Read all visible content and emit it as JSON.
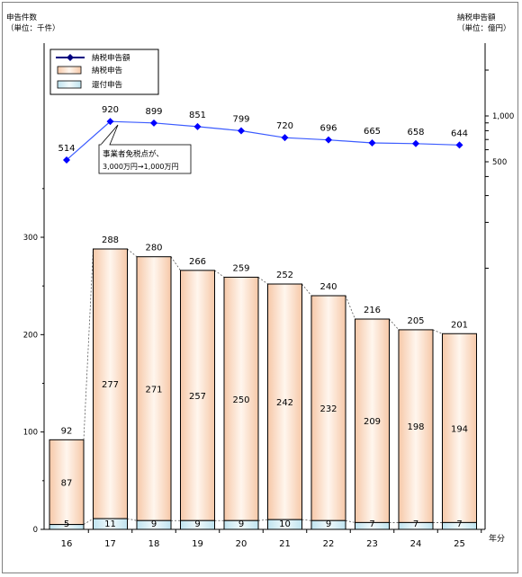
{
  "header": {
    "left_title": "申告件数",
    "left_unit": "（単位：千件）",
    "right_title": "納税申告額",
    "right_unit": "（単位：億円）"
  },
  "legend": {
    "tax_amount": "納税申告額",
    "tax_return": "納税申告",
    "refund_return": "還付申告"
  },
  "annotation": {
    "line1": "事業者免税点が、",
    "line2": "3,000万円→1,000万円"
  },
  "colors": {
    "bar_fill_edge": "#f6c8a8",
    "refund_fill": "#bfe3ef",
    "line": "#3b5bff",
    "marker": "#0000ff",
    "legend_line": "#000080"
  },
  "chart_data": {
    "type": "bar",
    "x_unit": "年分",
    "categories": [
      "16",
      "17",
      "18",
      "19",
      "20",
      "21",
      "22",
      "23",
      "24",
      "25"
    ],
    "totals": [
      92,
      288,
      280,
      266,
      259,
      252,
      240,
      216,
      205,
      201
    ],
    "series": [
      {
        "name": "納税申告",
        "values": [
          87,
          277,
          271,
          257,
          250,
          242,
          232,
          209,
          198,
          194
        ]
      },
      {
        "name": "還付申告",
        "values": [
          5,
          11,
          9,
          9,
          9,
          10,
          9,
          7,
          7,
          7
        ]
      }
    ],
    "line_series": {
      "name": "納税申告額",
      "values": [
        514,
        920,
        899,
        851,
        799,
        720,
        696,
        665,
        658,
        644
      ]
    },
    "left_axis": {
      "ticks": [
        0,
        100,
        200,
        300
      ],
      "ylim": [
        0,
        400
      ]
    },
    "right_axis": {
      "tick_labels": [
        "500",
        "1,000"
      ]
    },
    "legend_position": "top-left",
    "stacked": true
  }
}
